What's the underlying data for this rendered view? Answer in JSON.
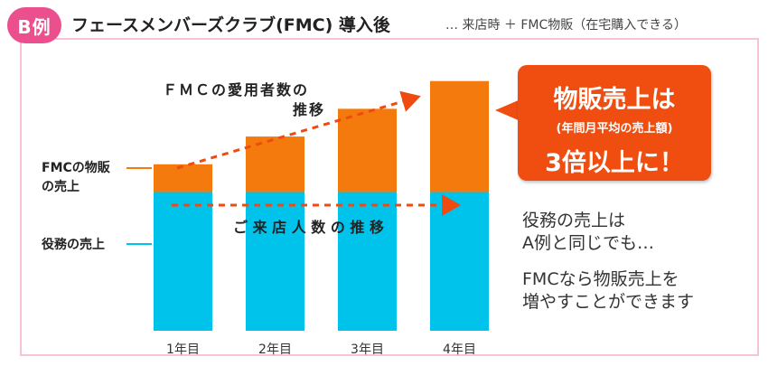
{
  "header": {
    "badge": "B例",
    "title": "フェースメンバーズクラブ(FMC) 導入後",
    "subtitle": "… 来店時 ＋ FMC物販（在宅購入できる）"
  },
  "labels": {
    "fmc_sales_line1": "FMCの物販",
    "fmc_sales_line2": "の売上",
    "service_sales": "役務の売上",
    "fmc_users_trend_line1": "ＦＭＣの愛用者数の",
    "fmc_users_trend_line2": "推移",
    "visitors_trend": "ご 来 店 人 数 の 推 移"
  },
  "callout": {
    "title": "物販売上は",
    "subtitle": "(年間月平均の売上額)",
    "result": "3倍以上に！"
  },
  "notes": {
    "line1": "役務の売上は",
    "line2": "A例と同じでも…",
    "line3": "FMCなら物販売上を",
    "line4": "増やすことができます"
  },
  "colors": {
    "service": "#00c3ec",
    "fmc": "#f47a0d",
    "arrow": "#ef4b10",
    "badge": "#ec4f8e",
    "frame": "#f7c1d7"
  },
  "chart_data": {
    "type": "bar",
    "stacked": true,
    "categories": [
      "1年目",
      "2年目",
      "3年目",
      "4年目"
    ],
    "series": [
      {
        "name": "役務の売上",
        "values": [
          5,
          5,
          5,
          5
        ]
      },
      {
        "name": "FMCの物販の売上",
        "values": [
          1,
          2,
          3,
          4
        ]
      }
    ],
    "ylim": [
      0,
      10
    ]
  }
}
